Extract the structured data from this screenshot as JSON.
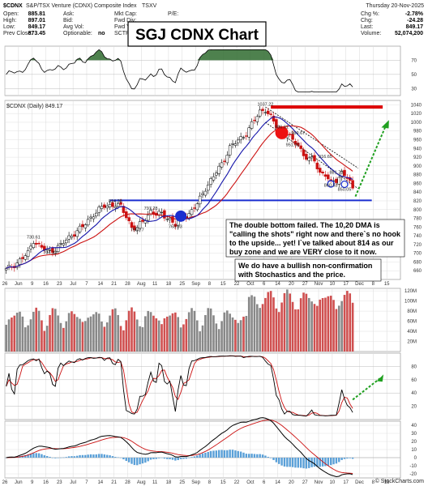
{
  "header": {
    "symbol": "$CDNX",
    "name": "S&P/TSX Venture (CDNX) Composite Index",
    "exchange": "TSXV",
    "date": "Thursday 20-Nov-2025",
    "watermark": "© StockCharts.com",
    "fields_left": [
      {
        "label": "Open:",
        "value": "885.81"
      },
      {
        "label": "High:",
        "value": "897.01"
      },
      {
        "label": "Low:",
        "value": "849.17"
      },
      {
        "label": "Prev Close:",
        "value": "873.45"
      }
    ],
    "fields_mid": [
      "Ask:",
      "Bid:",
      "Avg Vol:",
      "Optionable:"
    ],
    "optionable_value": "no",
    "fields_cap": [
      "Mkt Cap:",
      "Fwd Div:",
      "Fwd Yld:",
      "SCTR:"
    ],
    "fields_pe": [
      "P/E:"
    ],
    "fields_right": [
      {
        "label": "Chg %:",
        "value": "-2.78%"
      },
      {
        "label": "Chg:",
        "value": "-24.28"
      },
      {
        "label": "Last:",
        "value": "849.17"
      },
      {
        "label": "Volume:",
        "value": "52,074,200"
      }
    ]
  },
  "title_box": "SGJ CDNX Chart",
  "price_label": "$CDNX (Daily) 849.17",
  "annotation_1": [
    "The double bottom failed.  The 10,20 DMA is",
    "\"calling the shots\" right now and there`s no hook",
    "to the upside... yet!  I`ve talked about 814 as our",
    "buy zone and we are VERY close to it now."
  ],
  "annotation_2": [
    "We do have a bullish non-confirmation",
    "with Stochastics and the price."
  ],
  "colors": {
    "up": "#ffffff",
    "down": "#cc1111",
    "ma10": "#1515aa",
    "ma20": "#cc1111",
    "support_line": "#1b2fd0",
    "resistance_line": "#dd0000",
    "arrow": "#20a020",
    "rsi_fill": "#2f6b2f",
    "macd_hist": "#5aa0d8"
  },
  "chart_data": {
    "type": "line",
    "yaxis_price": {
      "ylim": [
        640,
        1050
      ],
      "ticks": [
        "660",
        "680",
        "700",
        "720",
        "740",
        "760",
        "780",
        "800",
        "820",
        "840",
        "860",
        "880",
        "900",
        "920",
        "940",
        "960",
        "980",
        "1000",
        "1020",
        "1040"
      ]
    },
    "xaxis": {
      "ticks": [
        "26",
        "Jun",
        "9",
        "16",
        "23",
        "Jul",
        "7",
        "14",
        "21",
        "28",
        "Aug",
        "11",
        "18",
        "25",
        "Sep",
        "8",
        "15",
        "22",
        "Oct",
        "6",
        "14",
        "20",
        "27",
        "Nov",
        "10",
        "17",
        "Dec",
        "8",
        "15"
      ],
      "tick_index": [
        0,
        5,
        10,
        15,
        20,
        25,
        30,
        35,
        40,
        45,
        50,
        55,
        60,
        65,
        70,
        75,
        80,
        85,
        90,
        95,
        100,
        105,
        110,
        115,
        120,
        125,
        130,
        135,
        140
      ],
      "total_days": 145
    },
    "close_nodes": [
      [
        0,
        662
      ],
      [
        4,
        678
      ],
      [
        8,
        700
      ],
      [
        10,
        730
      ],
      [
        13,
        712
      ],
      [
        16,
        704
      ],
      [
        20,
        718
      ],
      [
        24,
        742
      ],
      [
        28,
        760
      ],
      [
        32,
        790
      ],
      [
        36,
        808
      ],
      [
        40,
        812
      ],
      [
        42,
        805
      ],
      [
        44,
        785
      ],
      [
        46,
        760
      ],
      [
        48,
        757
      ],
      [
        50,
        772
      ],
      [
        53,
        797
      ],
      [
        55,
        788
      ],
      [
        57,
        790
      ],
      [
        60,
        778
      ],
      [
        62,
        764
      ],
      [
        64,
        782
      ],
      [
        67,
        790
      ],
      [
        70,
        812
      ],
      [
        73,
        850
      ],
      [
        76,
        875
      ],
      [
        79,
        905
      ],
      [
        82,
        942
      ],
      [
        85,
        958
      ],
      [
        88,
        975
      ],
      [
        91,
        1005
      ],
      [
        93,
        1025
      ],
      [
        95,
        1030
      ],
      [
        97,
        1010
      ],
      [
        99,
        990
      ],
      [
        101,
        972
      ],
      [
        103,
        975
      ],
      [
        105,
        955
      ],
      [
        107,
        950
      ],
      [
        109,
        925
      ],
      [
        111,
        915
      ],
      [
        113,
        912
      ],
      [
        115,
        885
      ],
      [
        117,
        880
      ],
      [
        119,
        860
      ],
      [
        121,
        868
      ],
      [
        123,
        885
      ],
      [
        125,
        873
      ],
      [
        127,
        849
      ]
    ],
    "labels_price": [
      {
        "text": "814.38",
        "x": 40,
        "y": 816
      },
      {
        "text": "730.61",
        "x": 10,
        "y": 734
      },
      {
        "text": "704.11",
        "x": 16,
        "y": 698
      },
      {
        "text": "797.28",
        "x": 53,
        "y": 800
      },
      {
        "text": "756.77",
        "x": 48,
        "y": 750
      },
      {
        "text": "763.93",
        "x": 62,
        "y": 758
      },
      {
        "text": "1037.22",
        "x": 95,
        "y": 1038
      },
      {
        "text": "986.61",
        "x": 101,
        "y": 986
      },
      {
        "text": "969.67",
        "x": 107,
        "y": 972
      },
      {
        "text": "951.00",
        "x": 105,
        "y": 945
      },
      {
        "text": "916.65",
        "x": 117,
        "y": 918
      },
      {
        "text": "881.73",
        "x": 121,
        "y": 882
      },
      {
        "text": "860.53",
        "x": 119,
        "y": 852
      },
      {
        "text": "850.05",
        "x": 124,
        "y": 843
      }
    ],
    "support_level": 821,
    "resistance_level": 1035,
    "rsi_ticks": [
      "30",
      "50",
      "70"
    ],
    "volume_ticks": [
      "20",
      "40",
      "60",
      "80",
      "100",
      "120"
    ],
    "volume_unit": "M",
    "stoch_ticks": [
      "20",
      "40",
      "60",
      "80"
    ],
    "macd_ticks": [
      "-20",
      "-10",
      "0",
      "10",
      "20",
      "30",
      "40"
    ]
  }
}
